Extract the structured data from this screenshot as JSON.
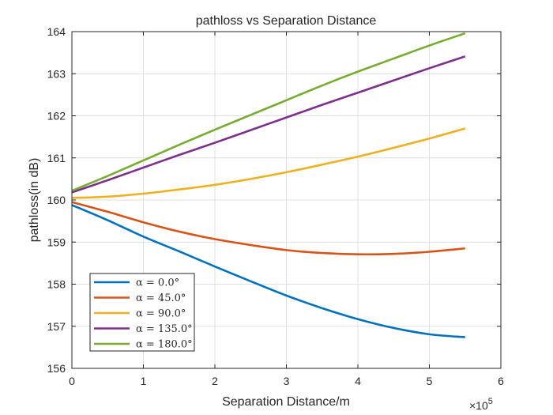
{
  "chart_data": {
    "type": "line",
    "title": "pathloss vs Separation Distance",
    "xlabel": "Separation Distance/m",
    "ylabel": "pathloss(in dB)",
    "x_exponent_label": "×10",
    "x_exponent_power": "5",
    "xlim": [
      0,
      6
    ],
    "ylim": [
      156,
      164
    ],
    "xticks": [
      0,
      1,
      2,
      3,
      4,
      5,
      6
    ],
    "yticks": [
      156,
      157,
      158,
      159,
      160,
      161,
      162,
      163,
      164
    ],
    "xtick_labels": [
      "0",
      "1",
      "2",
      "3",
      "4",
      "5",
      "6"
    ],
    "ytick_labels": [
      "156",
      "157",
      "158",
      "159",
      "160",
      "161",
      "162",
      "163",
      "164"
    ],
    "grid": true,
    "legend_position": "bottom-left",
    "x": [
      0,
      0.5,
      1,
      1.5,
      2,
      2.5,
      3,
      3.5,
      4,
      4.5,
      5,
      5.5
    ],
    "series": [
      {
        "name": "α = 0.0°",
        "color": "#0072BD",
        "values": [
          159.88,
          159.52,
          159.13,
          158.78,
          158.42,
          158.07,
          157.73,
          157.43,
          157.17,
          156.96,
          156.81,
          156.74
        ]
      },
      {
        "name": "α = 45.0°",
        "color": "#D95319",
        "values": [
          159.95,
          159.72,
          159.47,
          159.25,
          159.07,
          158.93,
          158.81,
          158.74,
          158.71,
          158.72,
          158.77,
          158.85
        ]
      },
      {
        "name": "α = 90.0°",
        "color": "#EDB120",
        "values": [
          160.05,
          160.08,
          160.15,
          160.25,
          160.36,
          160.5,
          160.66,
          160.84,
          161.03,
          161.24,
          161.46,
          161.7
        ]
      },
      {
        "name": "α = 135.0°",
        "color": "#7E2F8E",
        "values": [
          160.18,
          160.47,
          160.77,
          161.07,
          161.36,
          161.66,
          161.96,
          162.26,
          162.55,
          162.84,
          163.13,
          163.41
        ]
      },
      {
        "name": "α = 180.0°",
        "color": "#77AC30",
        "values": [
          160.22,
          160.57,
          160.94,
          161.31,
          161.67,
          162.02,
          162.37,
          162.72,
          163.05,
          163.36,
          163.67,
          163.96
        ]
      }
    ]
  }
}
